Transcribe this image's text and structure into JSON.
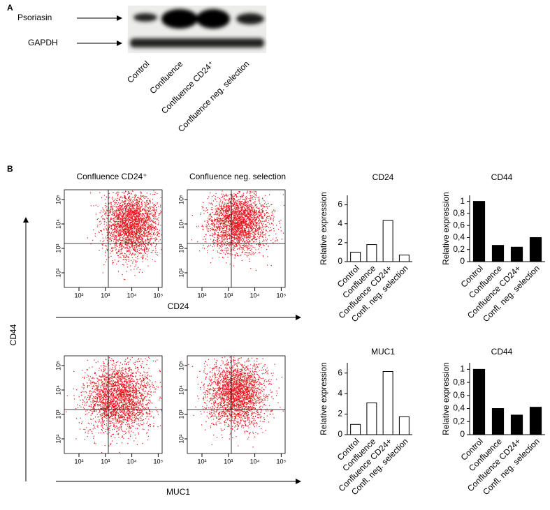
{
  "panel_a": {
    "label": "A",
    "rows": [
      "Psoriasin",
      "GAPDH"
    ],
    "lanes": [
      "Control",
      "Confluence",
      "Confluence CD24⁺",
      "Confluence neg. selection"
    ]
  },
  "panel_b": {
    "label": "B",
    "plot_titles": [
      "Confluence CD24⁺",
      "Confluence neg. selection"
    ],
    "x_axis_labels": [
      "CD24",
      "MUC1"
    ],
    "y_axis_label": "CD44",
    "flow_tick_labels": [
      "10²",
      "10³",
      "10⁴",
      "10⁵"
    ]
  },
  "chart_data": [
    {
      "type": "bar",
      "title": "CD24",
      "y_label": "Relative expression",
      "categories": [
        "Control",
        "Confluence",
        "Confluence CD24+",
        "Confl. neg. selection"
      ],
      "values": [
        1.0,
        1.8,
        4.35,
        0.7
      ],
      "color": "#ffffff",
      "edge_color": "#000000",
      "ylim": [
        0,
        7
      ],
      "yticks": [
        0,
        2,
        4,
        6
      ]
    },
    {
      "type": "bar",
      "title": "CD44",
      "y_label": "Relative expression",
      "categories": [
        "Control",
        "Confluence",
        "Confluence CD24+",
        "Confl. neg. selection"
      ],
      "values": [
        1.0,
        0.27,
        0.24,
        0.4
      ],
      "color": "#000000",
      "edge_color": "#000000",
      "ylim": [
        0,
        1.1
      ],
      "yticks": [
        0,
        {
          "value": 0.2,
          "label": "0,2"
        },
        {
          "value": 0.4,
          "label": "0,4"
        },
        {
          "value": 0.6,
          "label": "0,6"
        },
        {
          "value": 0.8,
          "label": "0,8"
        },
        1
      ]
    },
    {
      "type": "bar",
      "title": "MUC1",
      "y_label": "Relative expression",
      "categories": [
        "Control",
        "Confluence",
        "Confluence CD24+",
        "Confl. neg. selection"
      ],
      "values": [
        1.0,
        3.1,
        6.15,
        1.75
      ],
      "color": "#ffffff",
      "edge_color": "#000000",
      "ylim": [
        0,
        7
      ],
      "yticks": [
        0,
        2,
        4,
        6
      ]
    },
    {
      "type": "bar",
      "title": "CD44",
      "y_label": "Relative expression",
      "categories": [
        "Control",
        "Confluence",
        "Confluence CD24+",
        "Confl. neg. selection"
      ],
      "values": [
        1.0,
        0.4,
        0.3,
        0.42
      ],
      "color": "#000000",
      "edge_color": "#000000",
      "ylim": [
        0,
        1.1
      ],
      "yticks": [
        0,
        {
          "value": 0.2,
          "label": "0,2"
        },
        {
          "value": 0.4,
          "label": "0,4"
        },
        {
          "value": 0.6,
          "label": "0,6"
        },
        {
          "value": 0.8,
          "label": "0,8"
        },
        1
      ]
    }
  ]
}
